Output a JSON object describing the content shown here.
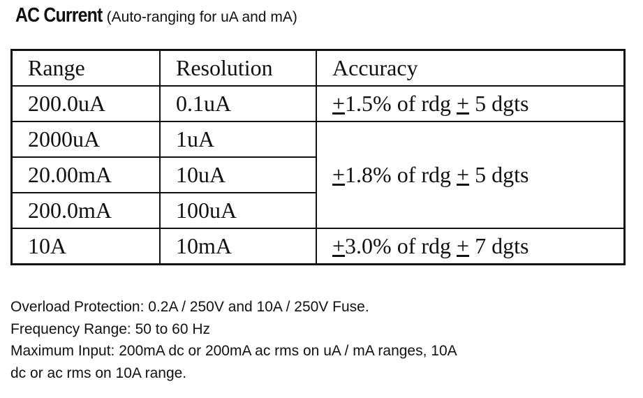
{
  "title": {
    "main": "AC Current",
    "sub": "(Auto-ranging for uA and mA)"
  },
  "table": {
    "headers": [
      "Range",
      "Resolution",
      "Accuracy"
    ],
    "rows": [
      {
        "range": "200.0uA",
        "resolution": "0.1uA"
      },
      {
        "range": "2000uA",
        "resolution": "1uA"
      },
      {
        "range": "20.00mA",
        "resolution": "10uA"
      },
      {
        "range": "200.0mA",
        "resolution": "100uA"
      },
      {
        "range": "10A",
        "resolution": "10mA"
      }
    ],
    "accuracy": [
      {
        "pm": "+",
        "pct": "1.5% of rdg ",
        "pm2": "+",
        "dgts": " 5 dgts"
      },
      {
        "pm": "+",
        "pct": "1.8% of rdg ",
        "pm2": "+",
        "dgts": " 5 dgts"
      },
      {
        "pm": "+",
        "pct": "3.0% of rdg ",
        "pm2": "+",
        "dgts": " 7 dgts"
      }
    ]
  },
  "notes": [
    "Overload Protection: 0.2A / 250V and 10A / 250V Fuse.",
    "Frequency Range: 50 to 60 Hz",
    "Maximum Input: 200mA dc or 200mA ac rms on uA / mA ranges, 10A",
    "dc or ac rms on 10A range."
  ]
}
